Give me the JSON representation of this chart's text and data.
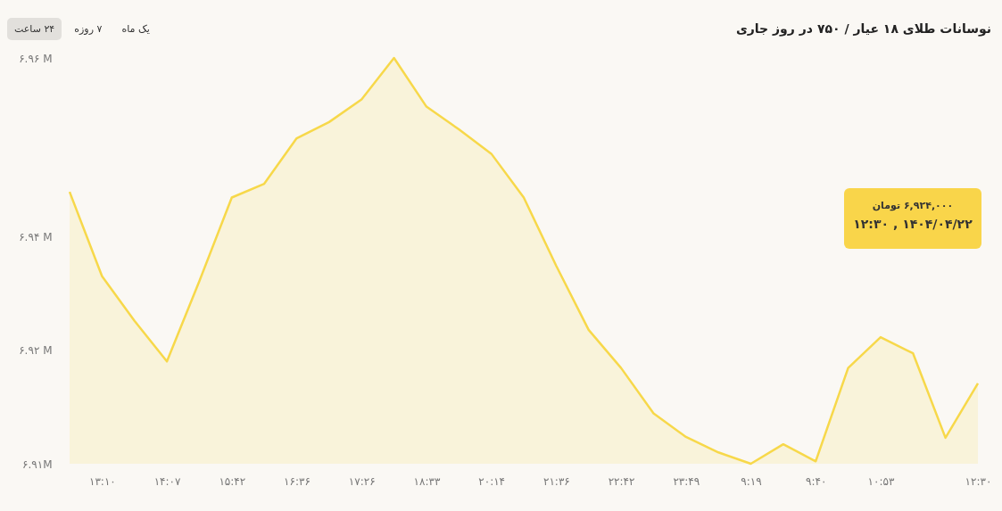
{
  "chart_data": {
    "type": "area",
    "title": "نوسانات طلای ۱۸ عیار / ۷۵۰ در روز جاری",
    "categories": [
      null,
      "۱۳:۱۰",
      null,
      "۱۴:۰۷",
      null,
      "۱۵:۴۲",
      null,
      "۱۶:۳۶",
      null,
      "۱۷:۲۶",
      null,
      "۱۸:۳۳",
      null,
      "۲۰:۱۴",
      null,
      "۲۱:۳۶",
      null,
      "۲۲:۴۲",
      null,
      "۲۳:۴۹",
      null,
      "۹:۱۹",
      null,
      "۹:۴۰",
      null,
      "۱۰:۵۳",
      null,
      null,
      "۱۲:۳۰"
    ],
    "series": [
      {
        "color": "#f7d84a",
        "values": [
          6.9435,
          6.9331,
          6.9276,
          6.9226,
          6.9325,
          6.9428,
          6.9445,
          6.9501,
          6.9521,
          6.9549,
          6.96,
          6.954,
          6.9512,
          6.9482,
          6.9428,
          6.9344,
          6.9265,
          6.9218,
          6.9162,
          6.9133,
          6.9114,
          6.91,
          6.9124,
          6.9103,
          6.9218,
          6.9256,
          6.9236,
          6.9132,
          6.9199
        ]
      }
    ],
    "ylim": [
      6.91,
      6.96
    ],
    "yticks": [
      {
        "value": 6.91,
        "label": "۶.۹۱M"
      },
      {
        "value": 6.924,
        "label": "۶.۹۲ M"
      },
      {
        "value": 6.938,
        "label": "۶.۹۴ M"
      },
      {
        "value": 6.96,
        "label": "۶.۹۶ M"
      }
    ],
    "annotations": [
      "۲۴ ساعت",
      "۷ روزه",
      "یک ماه",
      "۶,۹۲۴,۰۰۰ تومان",
      "۱۴۰۴/۰۴/۲۲ , ۱۲:۳۰"
    ]
  }
}
